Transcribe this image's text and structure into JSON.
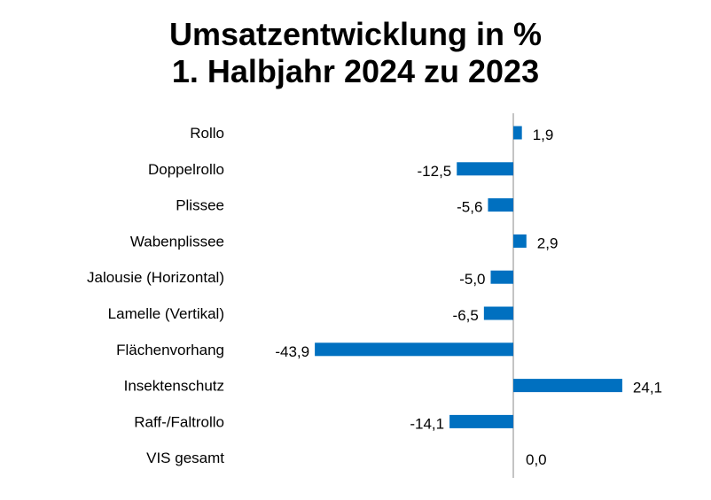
{
  "chart_data": {
    "type": "bar",
    "orientation": "horizontal",
    "title_lines": [
      "Umsatzentwicklung in %",
      "1. Halbjahr 2024 zu 2023"
    ],
    "categories": [
      "Rollo",
      "Doppelrollo",
      "Plissee",
      "Wabenplissee",
      "Jalousie (Horizontal)",
      "Lamelle (Vertikal)",
      "Flächenvorhang",
      "Insektenschutz",
      "Raff-/Faltrollo",
      "VIS gesamt"
    ],
    "values": [
      1.9,
      -12.5,
      -5.6,
      2.9,
      -5.0,
      -6.5,
      -43.9,
      24.1,
      -14.1,
      0.0
    ],
    "value_labels": [
      "1,9",
      "-12,5",
      "-5,6",
      "2,9",
      "-5,0",
      "-6,5",
      "-43,9",
      "24,1",
      "-14,1",
      "0,0"
    ],
    "bar_color": "#0070C0",
    "axis_color": "#888888",
    "grid": false,
    "legend": "none",
    "xlim": [
      -43.9,
      24.1
    ]
  }
}
